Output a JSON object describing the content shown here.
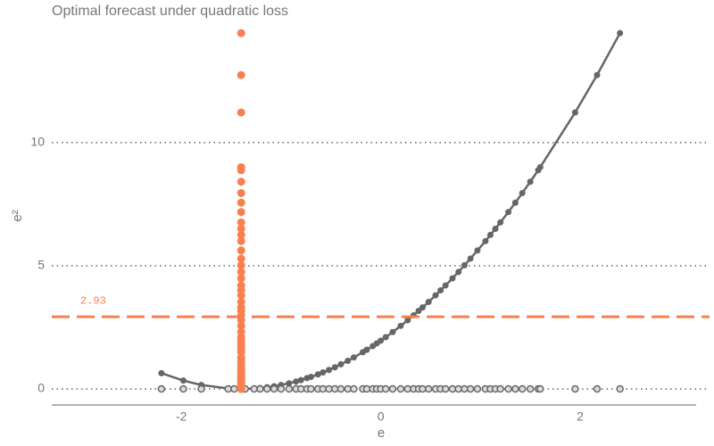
{
  "chart_data": {
    "type": "scatter",
    "title": "Optimal forecast under quadratic loss",
    "xlabel": "e",
    "ylabel": "e²",
    "x": [
      -2.2,
      -1.98,
      -1.8,
      -1.53,
      -1.47,
      -1.36,
      -1.27,
      -1.21,
      -1.14,
      -1.07,
      -1.0,
      -0.92,
      -0.85,
      -0.8,
      -0.74,
      -0.7,
      -0.63,
      -0.58,
      -0.52,
      -0.46,
      -0.4,
      -0.33,
      -0.27,
      -0.18,
      -0.14,
      -0.08,
      -0.04,
      0.0,
      0.05,
      0.12,
      0.2,
      0.27,
      0.33,
      0.38,
      0.42,
      0.48,
      0.55,
      0.6,
      0.65,
      0.72,
      0.78,
      0.84,
      0.9,
      0.97,
      1.05,
      1.1,
      1.15,
      1.2,
      1.28,
      1.35,
      1.42,
      1.5,
      1.58,
      1.6,
      1.95,
      2.17,
      2.4
    ],
    "values": [
      0.64,
      0.34,
      0.16,
      0.02,
      0,
      0,
      0.02,
      0.04,
      0.07,
      0.11,
      0.16,
      0.23,
      0.3,
      0.36,
      0.44,
      0.49,
      0.59,
      0.67,
      0.77,
      0.88,
      1.0,
      1.14,
      1.28,
      1.49,
      1.59,
      1.74,
      1.85,
      1.96,
      2.1,
      2.31,
      2.56,
      2.79,
      2.99,
      3.17,
      3.31,
      3.53,
      3.8,
      4.0,
      4.2,
      4.49,
      4.75,
      5.02,
      5.29,
      5.62,
      6.0,
      6.25,
      6.5,
      6.76,
      7.18,
      7.56,
      7.95,
      8.41,
      8.88,
      9.0,
      11.22,
      12.74,
      14.44
    ],
    "color": "#666666",
    "forecast_x": -1.4,
    "forecast_color": "#f8804f",
    "hline": 2.93,
    "xlim": [
      -3.3,
      3.164
    ],
    "ylim": [
      -0.65,
      14.7
    ],
    "xticks": [
      -2,
      0,
      2
    ],
    "yticks": [
      0,
      5,
      10
    ],
    "grid": true
  }
}
